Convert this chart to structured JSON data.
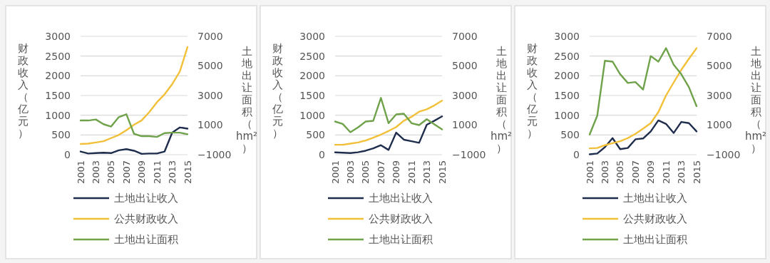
{
  "chart_data": [
    {
      "type": "line",
      "ylabel": "财政收入（亿元）",
      "y2label": "土地出让面积（hm²）",
      "x": [
        2001,
        2002,
        2003,
        2004,
        2005,
        2006,
        2007,
        2008,
        2009,
        2010,
        2011,
        2012,
        2013,
        2014,
        2015
      ],
      "xlim": [
        2001,
        2015
      ],
      "xticks": [
        2001,
        2003,
        2005,
        2007,
        2009,
        2011,
        2013,
        2015
      ],
      "ylim": [
        0,
        3000
      ],
      "yticks": [
        0,
        500,
        1000,
        1500,
        2000,
        2500,
        3000
      ],
      "y2lim": [
        -1000,
        7000
      ],
      "y2ticks": [
        -1000,
        1000,
        3000,
        5000,
        7000
      ],
      "grid": "y",
      "legend": "bottom",
      "series": [
        {
          "name": "土地出让收入",
          "color": "#1f2d4d",
          "values": [
            80,
            30,
            40,
            50,
            40,
            110,
            140,
            100,
            20,
            30,
            30,
            80,
            560,
            690,
            660
          ]
        },
        {
          "name": "公共财政收入",
          "color": "#f2c038",
          "values": [
            270,
            280,
            310,
            340,
            420,
            500,
            620,
            760,
            870,
            1080,
            1330,
            1530,
            1790,
            2110,
            2730
          ]
        },
        {
          "name": "土地出让面积",
          "color": "#6fa24a",
          "axis": "y2",
          "values": [
            1310,
            1310,
            1380,
            1060,
            900,
            1540,
            1730,
            410,
            250,
            250,
            200,
            460,
            490,
            490,
            380
          ]
        }
      ]
    },
    {
      "type": "line",
      "ylabel": "财政收入（亿元）",
      "y2label": "土地出让面积（hm²）",
      "x": [
        2001,
        2002,
        2003,
        2004,
        2005,
        2006,
        2007,
        2008,
        2009,
        2010,
        2011,
        2012,
        2013,
        2014,
        2015
      ],
      "xlim": [
        2001,
        2015
      ],
      "xticks": [
        2001,
        2003,
        2005,
        2007,
        2009,
        2011,
        2013,
        2015
      ],
      "ylim": [
        0,
        3000
      ],
      "yticks": [
        0,
        500,
        1000,
        1500,
        2000,
        2500,
        3000
      ],
      "y2lim": [
        -1000,
        7000
      ],
      "y2ticks": [
        -1000,
        1000,
        3000,
        5000,
        7000
      ],
      "grid": "y",
      "legend": "bottom",
      "series": [
        {
          "name": "土地出让收入",
          "color": "#1f2d4d",
          "values": [
            60,
            50,
            40,
            60,
            100,
            160,
            240,
            120,
            560,
            380,
            340,
            300,
            760,
            860,
            970
          ]
        },
        {
          "name": "公共财政收入",
          "color": "#f2c038",
          "values": [
            250,
            250,
            280,
            310,
            360,
            430,
            510,
            600,
            700,
            860,
            960,
            1090,
            1150,
            1250,
            1370
          ]
        },
        {
          "name": "土地出让面积",
          "color": "#6fa24a",
          "axis": "y2",
          "values": [
            1240,
            1080,
            520,
            840,
            1240,
            1290,
            2840,
            1130,
            1720,
            1770,
            1130,
            1000,
            1400,
            1050,
            710
          ]
        }
      ]
    },
    {
      "type": "line",
      "ylabel": "财政收入（亿元）",
      "y2label": "土地出让面积（hm²）",
      "x": [
        2001,
        2002,
        2003,
        2004,
        2005,
        2006,
        2007,
        2008,
        2009,
        2010,
        2011,
        2012,
        2013,
        2014,
        2015
      ],
      "xlim": [
        2001,
        2015
      ],
      "xticks": [
        2001,
        2003,
        2005,
        2007,
        2009,
        2011,
        2013,
        2015
      ],
      "ylim": [
        0,
        3000
      ],
      "yticks": [
        0,
        500,
        1000,
        1500,
        2000,
        2500,
        3000
      ],
      "y2lim": [
        -1000,
        7000
      ],
      "y2ticks": [
        -1000,
        1000,
        3000,
        5000,
        7000
      ],
      "grid": "y",
      "legend": "bottom",
      "series": [
        {
          "name": "土地出让收入",
          "color": "#1f2d4d",
          "values": [
            10,
            30,
            190,
            420,
            140,
            170,
            390,
            410,
            590,
            870,
            780,
            550,
            830,
            800,
            590
          ]
        },
        {
          "name": "公共财政收入",
          "color": "#f2c038",
          "values": [
            160,
            170,
            240,
            290,
            340,
            420,
            530,
            660,
            800,
            1080,
            1500,
            1830,
            2150,
            2430,
            2700
          ]
        },
        {
          "name": "土地出让面积",
          "color": "#6fa24a",
          "axis": "y2",
          "values": [
            360,
            1640,
            5350,
            5290,
            4440,
            3850,
            3910,
            3400,
            5670,
            5290,
            6200,
            5080,
            4440,
            3560,
            2280
          ]
        }
      ]
    }
  ]
}
